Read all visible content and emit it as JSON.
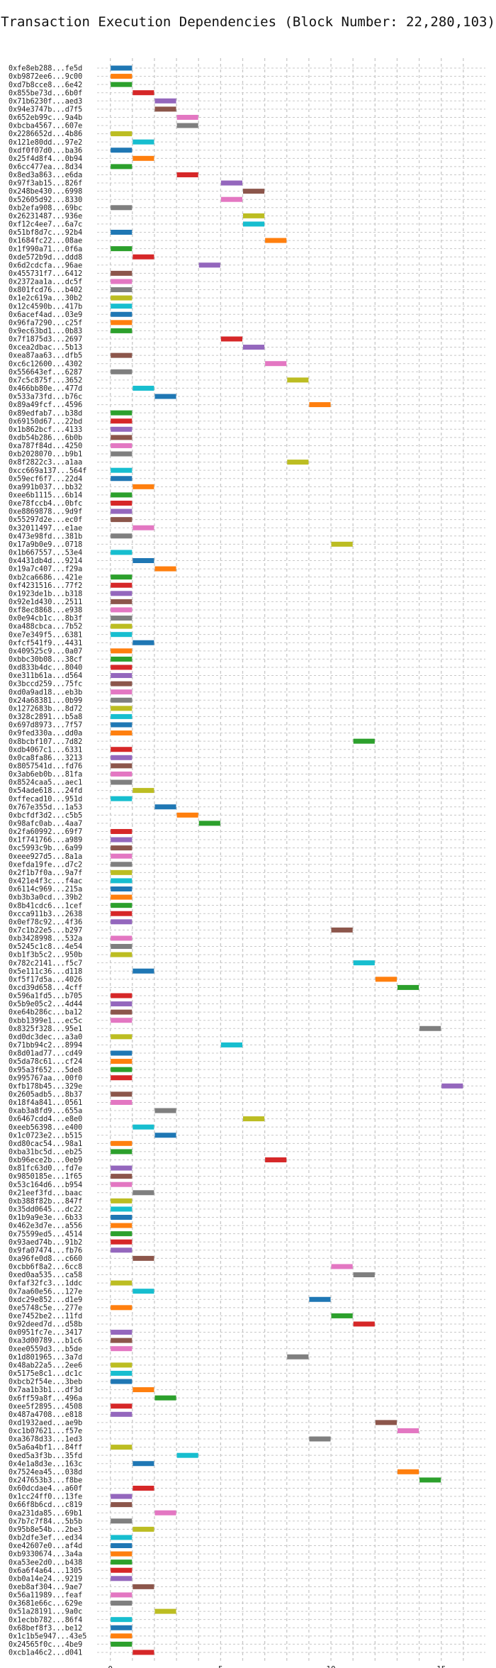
{
  "chart_data": {
    "type": "bar",
    "orientation": "horizontal-gantt",
    "title": "Transaction Execution Dependencies (Block Number: 22,280,103)",
    "xlabel": "",
    "ylabel": "",
    "xlim": [
      -0.6,
      17
    ],
    "x_ticks": [
      0,
      5,
      10,
      15
    ],
    "grid": true,
    "colors": [
      "#1f77b4",
      "#ff7f0e",
      "#2ca02c",
      "#d62728",
      "#9467bd",
      "#8c564b",
      "#e377c2",
      "#7f7f7f",
      "#bcbd22",
      "#17becf"
    ],
    "categories": [
      "0xfe8eb288...fe5d",
      "0xb9872ee6...9c00",
      "0xd7b8cce8...6e42",
      "0x855be73d...6b0f",
      "0x71b6230f...aed3",
      "0x94e3747b...d7f5",
      "0x652eb99c...9a4b",
      "0xbcba4567...607e",
      "0x2286652d...4b86",
      "0x121e80dd...97e2",
      "0xdf0f07d0...ba36",
      "0x25f4d8f4...0b94",
      "0x6cc477ea...8d34",
      "0x8ed3a863...e6da",
      "0x97f3ab15...826f",
      "0x248be430...6998",
      "0x52605d92...8330",
      "0xb2efa908...69bc",
      "0x26231487...936e",
      "0xf12c4ee7...6a7c",
      "0x51bf8d7c...92b4",
      "0x1684fc22...08ae",
      "0x1f990a71...0f6a",
      "0xde572b9d...ddd8",
      "0x6d2cdcfa...96ae",
      "0x455731f7...6412",
      "0x2372aa1a...dc5f",
      "0x801fcd76...b402",
      "0x1e2c619a...30b2",
      "0x12c4590b...417b",
      "0x6acef4ad...03e9",
      "0x96fa7290...c25f",
      "0x9ec63bd1...0b83",
      "0x7f1875d3...2697",
      "0xcea2dbac...5b13",
      "0xea87aa63...dfb5",
      "0xc6c12600...4302",
      "0x556643ef...6287",
      "0x7c5c875f...3652",
      "0x466bb80e...477d",
      "0x533a73fd...b76c",
      "0x89a49fcf...4596",
      "0x89edfab7...b38d",
      "0x69150d67...22bd",
      "0x1b862bcf...4133",
      "0xdb54b286...6b0b",
      "0xa787f84d...4250",
      "0xb2028070...b9b1",
      "0x8f2822c3...a1aa",
      "0xcc669a137...564f",
      "0x59ecf6f7...22d4",
      "0xa991b037...bb32",
      "0xee6b1115...6b14",
      "0xe78fccb4...0bfc",
      "0xe8869878...9d9f",
      "0x55297d2e...ec0f",
      "0x32011497...e1ae",
      "0x473e98fd...381b",
      "0x17a9b0e9...0718",
      "0x1b667557...53e4",
      "0x4431db4d...9214",
      "0x19a7c407...f29a",
      "0xb2ca6686...421e",
      "0xf4231516...77f2",
      "0x1923de1b...b318",
      "0x92e1d430...2511",
      "0xf8ec8868...e938",
      "0x0e94cb1c...8b3f",
      "0xa488cbca...7b52",
      "0xe7e349f5...6381",
      "0xfcf541f9...4431",
      "0x409525c9...0a07",
      "0xbbc30b08...38cf",
      "0xd833b4dc...8040",
      "0xe311b61a...d564",
      "0x3bccd259...75fc",
      "0xd0a9ad18...eb3b",
      "0x24a68381...0b99",
      "0x1272683b...8d72",
      "0x328c2891...b5a8",
      "0x697d8973...7f57",
      "0x9fed330a...dd0a",
      "0x8bcbf107...7d82",
      "0xdb4067c1...6331",
      "0x0ca8fa86...3213",
      "0x8057541d...fd76",
      "0x3ab6eb0b...81fa",
      "0x8524caa5...aec1",
      "0x54ade618...24fd",
      "0xffecad10...951d",
      "0x767e355d...1a53",
      "0xbcfdf3d2...c5b5",
      "0x98afc0ab...4aa7",
      "0x2fa60992...69f7",
      "0x1f741766...a989",
      "0xc5993c9b...6a99",
      "0xeee927d5...8a1a",
      "0xefda19fe...d7c2",
      "0x2f1b7f0a...9a7f",
      "0x421e4f3c...f4ac",
      "0x6114c969...215a",
      "0xb3b3a0cd...39b2",
      "0x8b41cdc6...1cef",
      "0xcca911b3...2638",
      "0x0ef78c92...4f36",
      "0x7c1b22e5...b297",
      "0xb3428998...532a",
      "0x5245c1c8...4e54",
      "0xb1f3b5c2...950b",
      "0x782c2141...f5c7",
      "0x5e111c36...d118",
      "0xf5f17d5a...4026",
      "0xcd39d658...4cff",
      "0x596a1fd5...b705",
      "0x5b9e05c2...4d44",
      "0xe64b286c...ba12",
      "0xbb1399e1...ec5c",
      "0x8325f328...95e1",
      "0xd0dc3dec...a3a0",
      "0x71bb94c2...8994",
      "0x8d01ad77...cd49",
      "0x5da78c61...cf24",
      "0x95a3f652...5de8",
      "0x995767aa...00f0",
      "0xfb178b45...329e",
      "0x2605adb5...8b37",
      "0x18f4a841...0561",
      "0xab3a8fd9...655a",
      "0x6467cdd4...e8e0",
      "0xeeb56398...e400",
      "0x1c0723e2...b515",
      "0xd80cac54...98a1",
      "0xba31bc5d...eb25",
      "0xb96ece2b...0eb9",
      "0x81fc63d0...fd7e",
      "0x9850185e...1f65",
      "0x53c164d6...b954",
      "0x21eef3fd...baac",
      "0xb388f82b...847f",
      "0x35dd0645...dc22",
      "0x1b9a9e3e...6b33",
      "0x462e3d7e...a556",
      "0x75599ed5...4514",
      "0x93aed74b...91b2",
      "0x9fa07474...fb76",
      "0xa96fe0d8...c660",
      "0xcbb6f8a2...6cc8",
      "0xed0aa535...ca58",
      "0xfaf32fc3...1ddc",
      "0x7aa60e56...127e",
      "0xdc29e852...d1e9",
      "0xe5748c5e...277e",
      "0xe7452be2...11fd",
      "0x92deed7d...d58b",
      "0x0951fc7e...3417",
      "0xa3d00789...b1c6",
      "0xee0559d3...b5de",
      "0x1d801965...3a7d",
      "0x48ab22a5...2ee6",
      "0x5175e8c1...dc1c",
      "0xbcb2f54e...3beb",
      "0x7aa1b3b1...df3d",
      "0x6ff59a8f...496a",
      "0xee5f2895...4508",
      "0x487a4708...e818",
      "0xd1932aed...ae9b",
      "0xc1b07621...f57e",
      "0xa3678d33...1ed3",
      "0x5a6a4bf1...84ff",
      "0xed5a3f3b...35fd",
      "0x4e1a8d3e...163c",
      "0x7524ea45...038d",
      "0x247653b3...f8be",
      "0x60dcdae4...a60f",
      "0x1cc24ff0...13fe",
      "0x66f8b6cd...c819",
      "0xa231da85...69b1",
      "0x7b7c7f84...5b5b",
      "0x95b8e54b...2be3",
      "0xb2dfe3ef...ed34",
      "0xe42607e0...af4d",
      "0xb9330674...3a4a",
      "0xa53ee2d0...b438",
      "0x6a6f4a64...1305",
      "0xb0a14e24...9219",
      "0xeb8af304...9ae7",
      "0x56a11989...feaf",
      "0x3681e66c...629e",
      "0x51a28191...9a0c",
      "0x1ecbb782...86f4",
      "0x68bef8f3...be12",
      "0x1c1b5e947...43e5",
      "0x24565f0c...4be9",
      "0xcb1a46c2...d041"
    ],
    "start": [
      0,
      0,
      0,
      1,
      2,
      2,
      3,
      3,
      0,
      1,
      0,
      1,
      0,
      3,
      5,
      6,
      5,
      0,
      6,
      6,
      0,
      7,
      0,
      1,
      4,
      0,
      0,
      0,
      0,
      0,
      0,
      0,
      0,
      5,
      6,
      0,
      7,
      0,
      8,
      1,
      2,
      9,
      0,
      0,
      0,
      0,
      0,
      0,
      8,
      0,
      0,
      1,
      0,
      0,
      0,
      0,
      1,
      0,
      10,
      0,
      1,
      2,
      0,
      0,
      0,
      0,
      0,
      0,
      0,
      0,
      1,
      0,
      0,
      0,
      0,
      0,
      0,
      0,
      0,
      0,
      0,
      0,
      11,
      0,
      0,
      0,
      0,
      0,
      1,
      0,
      2,
      3,
      4,
      0,
      0,
      0,
      0,
      0,
      0,
      0,
      0,
      0,
      0,
      0,
      0,
      10,
      0,
      0,
      0,
      11,
      1,
      12,
      13,
      0,
      0,
      0,
      0,
      14,
      0,
      5,
      0,
      0,
      0,
      0,
      15,
      0,
      0,
      2,
      6,
      1,
      2,
      0,
      0,
      7,
      0,
      0,
      0,
      1,
      0,
      0,
      0,
      0,
      0,
      0,
      0,
      1,
      10,
      11,
      0,
      1,
      9,
      0,
      10,
      11,
      0,
      0,
      0,
      8,
      0,
      0,
      0,
      1,
      2,
      0,
      0,
      12,
      13,
      9,
      0,
      3,
      1,
      13,
      14,
      1,
      0,
      0,
      2,
      0,
      1,
      0,
      0,
      0,
      0,
      0,
      0,
      1,
      0,
      0,
      2,
      0,
      0,
      0,
      0,
      1
    ],
    "duration": [
      1,
      1,
      1,
      1,
      1,
      1,
      1,
      1,
      1,
      1,
      1,
      1,
      1,
      1,
      1,
      1,
      1,
      1,
      1,
      1,
      1,
      1,
      1,
      1,
      1,
      1,
      1,
      1,
      1,
      1,
      1,
      1,
      1,
      1,
      1,
      1,
      1,
      1,
      1,
      1,
      1,
      1,
      1,
      1,
      1,
      1,
      1,
      1,
      1,
      1,
      1,
      1,
      1,
      1,
      1,
      1,
      1,
      1,
      1,
      1,
      1,
      1,
      1,
      1,
      1,
      1,
      1,
      1,
      1,
      1,
      1,
      1,
      1,
      1,
      1,
      1,
      1,
      1,
      1,
      1,
      1,
      1,
      1,
      1,
      1,
      1,
      1,
      1,
      1,
      1,
      1,
      1,
      1,
      1,
      1,
      1,
      1,
      1,
      1,
      1,
      1,
      1,
      1,
      1,
      1,
      1,
      1,
      1,
      1,
      1,
      1,
      1,
      1,
      1,
      1,
      1,
      1,
      1,
      1,
      1,
      1,
      1,
      1,
      1,
      1,
      1,
      1,
      1,
      1,
      1,
      1,
      1,
      1,
      1,
      1,
      1,
      1,
      1,
      1,
      1,
      1,
      1,
      1,
      1,
      1,
      1,
      1,
      1,
      1,
      1,
      1,
      1,
      1,
      1,
      1,
      1,
      1,
      1,
      1,
      1,
      1,
      1,
      1,
      1,
      1,
      1,
      1,
      1,
      1,
      1,
      1,
      1,
      1,
      1,
      1,
      1,
      1,
      1,
      1,
      1,
      1,
      1,
      1,
      1,
      1,
      1,
      1,
      1,
      1,
      1,
      1,
      1,
      1,
      1
    ]
  }
}
